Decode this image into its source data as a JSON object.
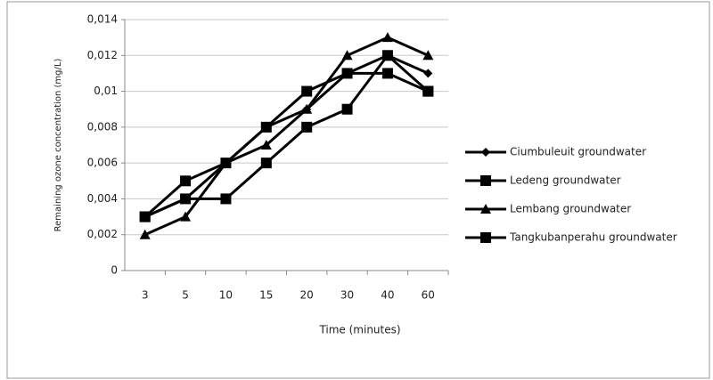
{
  "chart_data": {
    "type": "line",
    "x_label": "Time (minutes)",
    "y_label": "Remaining ozone  concentration (mg/L)",
    "categories": [
      "3",
      "5",
      "10",
      "15",
      "20",
      "30",
      "40",
      "60"
    ],
    "series": [
      {
        "name": "Ciumbuleuit groundwater",
        "color": "#000000",
        "marker": "diamond",
        "values": [
          0.003,
          0.004,
          0.006,
          0.008,
          0.009,
          0.011,
          0.012,
          0.011
        ]
      },
      {
        "name": "Ledeng groundwater",
        "color": "#000000",
        "marker": "square",
        "values": [
          0.003,
          0.005,
          0.006,
          0.008,
          0.01,
          0.011,
          0.011,
          0.01
        ]
      },
      {
        "name": "Lembang groundwater",
        "color": "#000000",
        "marker": "triangle",
        "values": [
          0.002,
          0.003,
          0.006,
          0.007,
          0.009,
          0.012,
          0.013,
          0.012
        ]
      },
      {
        "name": "Tangkubanperahu groundwater",
        "color": "#000000",
        "marker": "square",
        "values": [
          0.003,
          0.004,
          0.004,
          0.006,
          0.008,
          0.009,
          0.012,
          0.01
        ]
      }
    ],
    "ylim": [
      0,
      0.014
    ],
    "yticks": [
      0,
      {
        "value": 0.002,
        "label": "0,002"
      },
      {
        "value": 0.004,
        "label": "0,004"
      },
      {
        "value": 0.006,
        "label": "0,006"
      },
      {
        "value": 0.008,
        "label": "0,008"
      },
      {
        "value": 0.01,
        "label": "0,01"
      },
      {
        "value": 0.012,
        "label": "0,012"
      },
      {
        "value": 0.014,
        "label": "0,014"
      }
    ],
    "grid": true,
    "legend": "right"
  }
}
